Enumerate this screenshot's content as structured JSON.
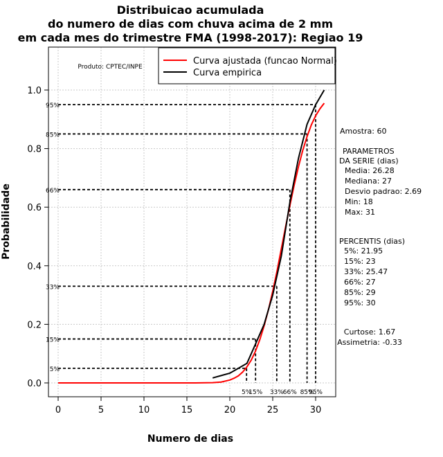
{
  "chart_data": {
    "type": "line",
    "title_lines": [
      "Distribuicao acumulada",
      "do numero de dias com chuva acima de 2 mm",
      "em cada mes do trimestre FMA (1998-2017): Regiao 19"
    ],
    "xlabel": "Numero de dias",
    "ylabel": "Probabilidade",
    "xlim": [
      -1,
      31
    ],
    "ylim": [
      0,
      1.1
    ],
    "xticks": [
      0,
      5,
      10,
      15,
      20,
      25,
      30
    ],
    "yticks": [
      0.0,
      0.2,
      0.4,
      0.6,
      0.8,
      1.0
    ],
    "grid": true,
    "legend_position": "top-right",
    "product_label": "Produto: CPTEC/INPE",
    "series": [
      {
        "name": "Curva ajustada (funcao Normal)",
        "color": "#ff0000",
        "x": [
          0,
          2,
          4,
          6,
          8,
          10,
          12,
          14,
          16,
          18,
          19,
          20,
          20.5,
          21,
          21.5,
          22,
          22.5,
          23,
          23.5,
          24,
          24.5,
          25,
          25.5,
          26,
          26.5,
          27,
          27.5,
          28,
          28.5,
          29,
          29.5,
          30,
          30.5,
          31
        ],
        "y": [
          0.0,
          0.0,
          0.0,
          0.0,
          0.0,
          0.0,
          0.0,
          0.0,
          0.0,
          0.001,
          0.003,
          0.01,
          0.016,
          0.024,
          0.037,
          0.055,
          0.078,
          0.109,
          0.148,
          0.195,
          0.25,
          0.313,
          0.382,
          0.458,
          0.533,
          0.605,
          0.675,
          0.738,
          0.794,
          0.841,
          0.881,
          0.912,
          0.936,
          0.955
        ]
      },
      {
        "name": "Curva empirica",
        "color": "#000000",
        "x": [
          18,
          19,
          20,
          21,
          22,
          23,
          24,
          25,
          26,
          27,
          28,
          29,
          30,
          31
        ],
        "y": [
          0.017,
          0.025,
          0.033,
          0.05,
          0.067,
          0.133,
          0.2,
          0.3,
          0.433,
          0.617,
          0.767,
          0.883,
          0.95,
          1.0
        ]
      }
    ],
    "percentile_lines": [
      {
        "label": "5%",
        "prob": 0.05,
        "x": 21.95
      },
      {
        "label": "15%",
        "prob": 0.15,
        "x": 23
      },
      {
        "label": "33%",
        "prob": 0.33,
        "x": 25.47
      },
      {
        "label": "66%",
        "prob": 0.66,
        "x": 27
      },
      {
        "label": "85%",
        "prob": 0.85,
        "x": 29
      },
      {
        "label": "95%",
        "prob": 0.95,
        "x": 30
      }
    ],
    "side_panel": {
      "sample": "Amostra: 60",
      "params_header_1": "PARAMETROS",
      "params_header_2": "DA SERIE (dias)",
      "params": [
        "Media: 26.28",
        "Mediana: 27",
        "Desvio padrao: 2.69",
        "Min: 18",
        "Max: 31"
      ],
      "percentis_header": "PERCENTIS (dias)",
      "percentis": [
        "5%: 21.95",
        "15%: 23",
        "33%: 25.47",
        "66%: 27",
        "85%: 29",
        "95%: 30"
      ],
      "curtose": "Curtose: 1.67",
      "assimetria": "Assimetria: -0.33"
    }
  }
}
